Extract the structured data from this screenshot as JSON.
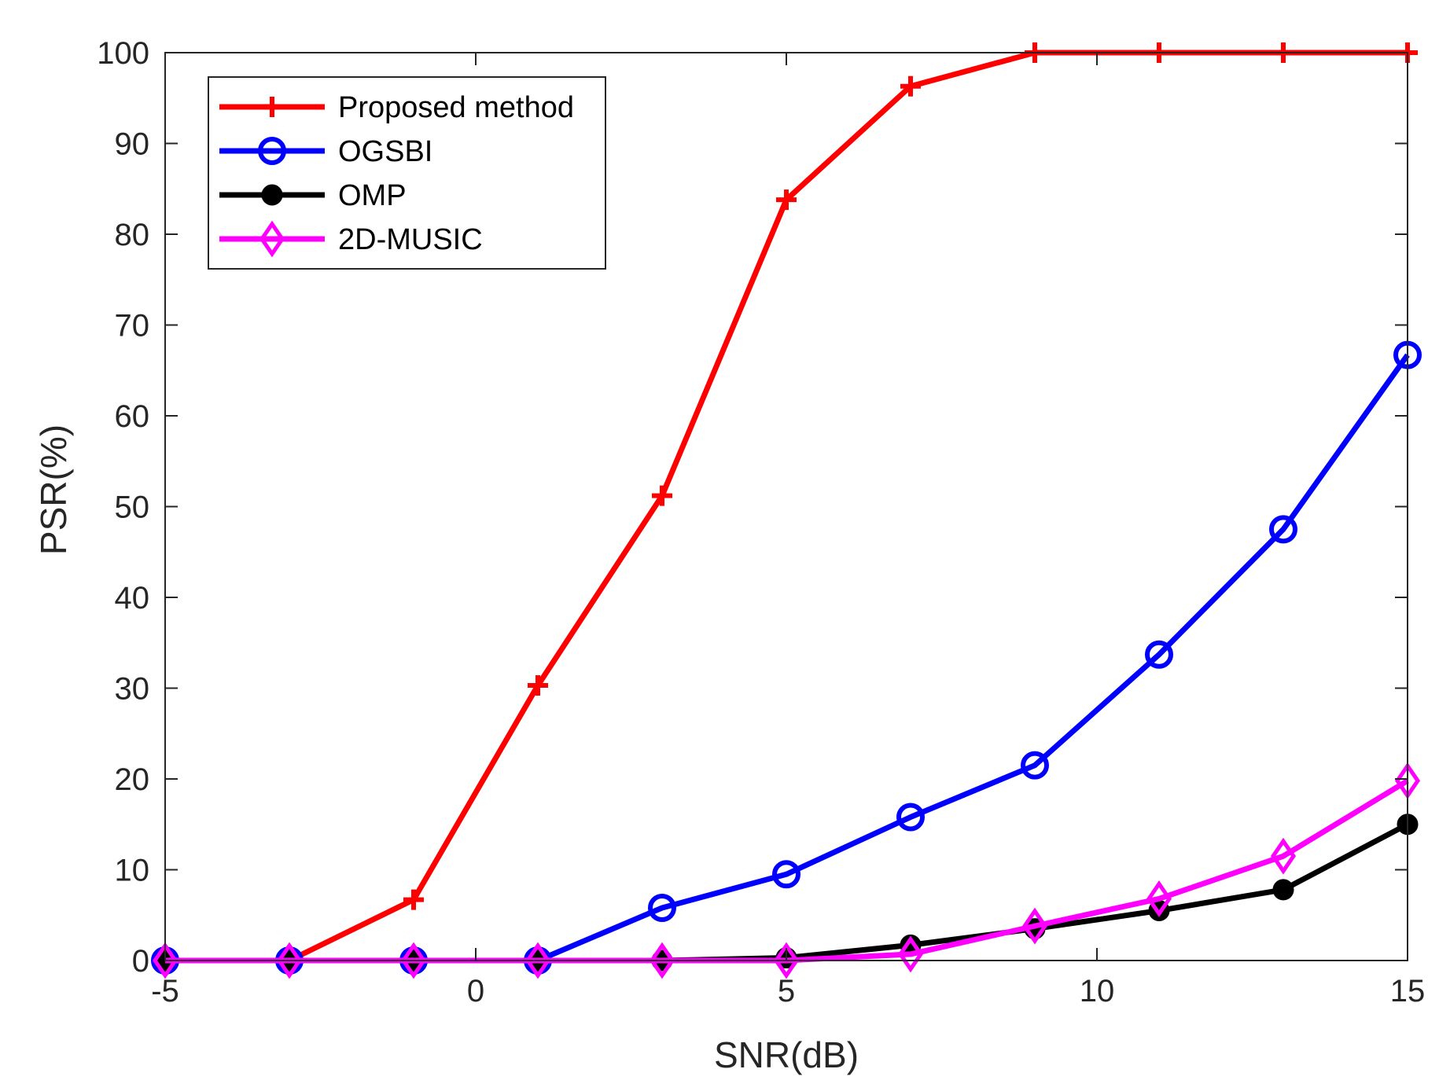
{
  "chart_data": {
    "type": "line",
    "title": "",
    "xlabel": "SNR(dB)",
    "ylabel": "PSR(%)",
    "xlim": [
      -5,
      15
    ],
    "ylim": [
      0,
      100
    ],
    "x": [
      -5,
      -3,
      -1,
      1,
      3,
      5,
      7,
      9,
      11,
      13,
      15
    ],
    "xticks": [
      -5,
      0,
      5,
      10,
      15
    ],
    "xtick_labels": [
      "-5",
      "0",
      "5",
      "10",
      "15"
    ],
    "yticks": [
      0,
      10,
      20,
      30,
      40,
      50,
      60,
      70,
      80,
      90,
      100
    ],
    "ytick_labels": [
      "0",
      "10",
      "20",
      "30",
      "40",
      "50",
      "60",
      "70",
      "80",
      "90",
      "100"
    ],
    "grid": false,
    "legend_position": "top-left",
    "series": [
      {
        "name": "Proposed method",
        "color": "#ff0000",
        "marker": "plus",
        "values": [
          0,
          0,
          6.7,
          30.3,
          51.2,
          83.8,
          96.3,
          100,
          100,
          100,
          100
        ]
      },
      {
        "name": "OGSBI",
        "color": "#0000ff",
        "marker": "circle",
        "values": [
          0,
          0,
          0,
          0,
          5.8,
          9.5,
          15.8,
          21.5,
          33.7,
          47.5,
          66.7
        ]
      },
      {
        "name": "OMP",
        "color": "#000000",
        "marker": "filled-circle",
        "values": [
          0,
          0,
          0,
          0,
          0,
          0.3,
          1.7,
          3.5,
          5.5,
          7.8,
          15
        ]
      },
      {
        "name": "2D-MUSIC",
        "color": "#ff00ff",
        "marker": "diamond",
        "values": [
          0,
          0,
          0,
          0,
          0,
          0,
          0.7,
          3.8,
          6.8,
          11.5,
          19.8
        ]
      }
    ]
  }
}
